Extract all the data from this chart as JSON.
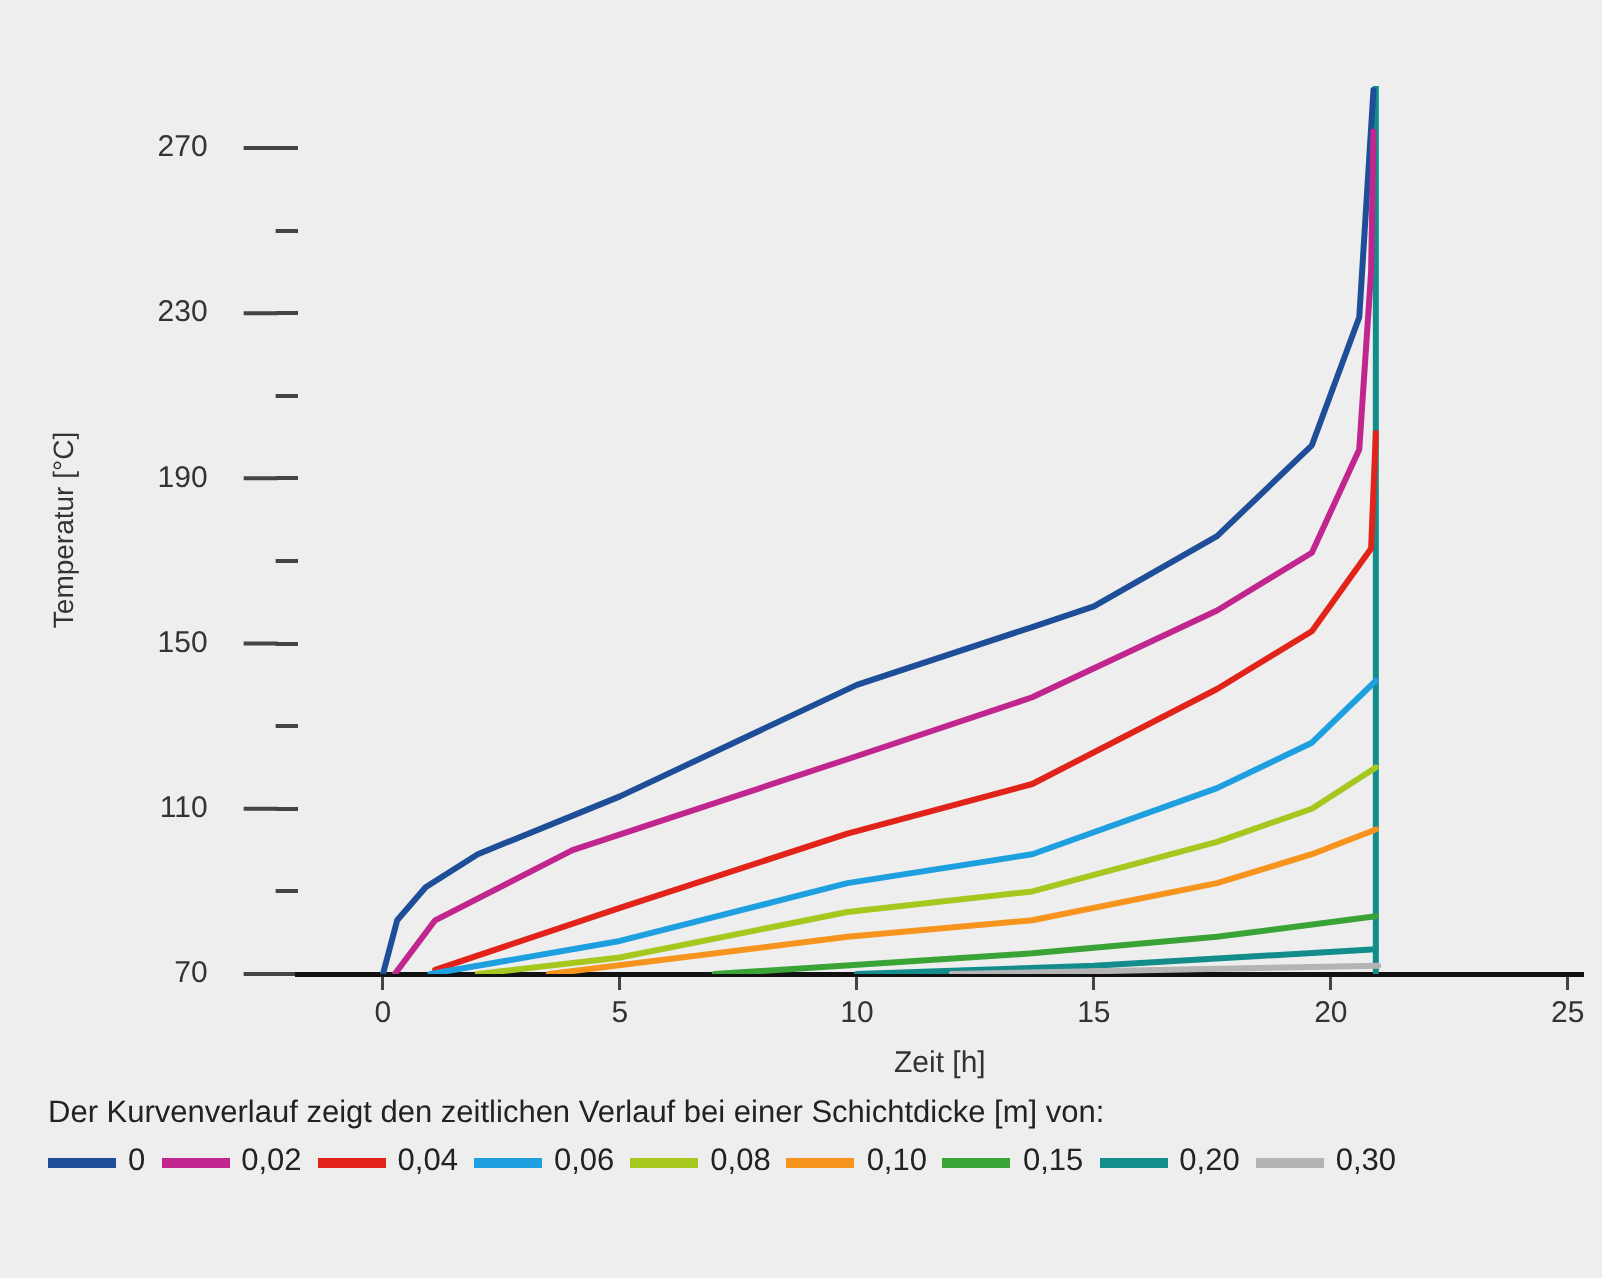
{
  "chart_data": {
    "type": "line",
    "xlabel": "Zeit [h]",
    "ylabel": "Temperatur [°C]",
    "legend_title": "Der Kurvenverlauf zeigt den zeitlichen Verlauf bei einer Schichtdicke [m] von:",
    "legend": "bottom",
    "marker": "none",
    "xlim": [
      -1.8,
      25.3
    ],
    "xticks": [
      0,
      5,
      10,
      15,
      20,
      25
    ],
    "ylim": [
      70,
      285
    ],
    "ref_lines": [
      {
        "axis": "x",
        "value": 20.95,
        "color": "#138c8c"
      }
    ],
    "yticks": [
      70,
      {
        "value": 90,
        "label": null
      },
      110,
      {
        "value": 130,
        "label": null
      },
      150,
      {
        "value": 170,
        "label": null
      },
      190,
      {
        "value": 210,
        "label": null
      },
      230,
      {
        "value": 250,
        "label": null
      },
      270
    ],
    "series": [
      {
        "name": "0",
        "color": "#1f4e99",
        "x": [
          0,
          0.3,
          0.9,
          2,
          5,
          10,
          13.7,
          15,
          17.6,
          19.6,
          20.6,
          20.9
        ],
        "values": [
          70,
          83,
          91,
          99,
          113,
          140,
          154,
          159,
          176,
          198,
          229,
          284
        ]
      },
      {
        "name": "0,02",
        "color": "#c0268e",
        "x": [
          0.25,
          1.1,
          4,
          9.8,
          13.7,
          17.6,
          19.6,
          20.6,
          20.85,
          20.9
        ],
        "values": [
          70,
          83,
          100,
          122,
          137,
          158,
          172,
          197,
          240,
          274
        ]
      },
      {
        "name": "0,04",
        "color": "#e2231a",
        "x": [
          1.1,
          5,
          9.8,
          13.7,
          17.6,
          19.6,
          20.85,
          20.95
        ],
        "values": [
          71,
          86,
          104,
          116,
          139,
          153,
          173,
          201
        ]
      },
      {
        "name": "0,06",
        "color": "#1ea0e0",
        "x": [
          1,
          5,
          9.8,
          13.7,
          17.6,
          19.6,
          20.95
        ],
        "values": [
          70,
          78,
          92,
          99,
          115,
          126,
          141
        ]
      },
      {
        "name": "0,08",
        "color": "#a6c81e",
        "x": [
          2,
          5,
          9.8,
          13.7,
          17.6,
          19.6,
          20.95
        ],
        "values": [
          70,
          74,
          85,
          90,
          102,
          110,
          120
        ]
      },
      {
        "name": "0,10",
        "color": "#f7941d",
        "x": [
          3.5,
          9.8,
          13.7,
          17.6,
          19.6,
          20.95
        ],
        "values": [
          70,
          79,
          83,
          92,
          99,
          105
        ]
      },
      {
        "name": "0,15",
        "color": "#3aa335",
        "x": [
          7,
          13.7,
          17.6,
          20.95
        ],
        "values": [
          70,
          75,
          79,
          84
        ]
      },
      {
        "name": "0,20",
        "color": "#138c8c",
        "x": [
          10,
          15,
          20.95
        ],
        "values": [
          70,
          72,
          76
        ]
      },
      {
        "name": "0,30",
        "color": "#b4b4b4",
        "x": [
          12,
          21
        ],
        "values": [
          70,
          72
        ]
      }
    ]
  }
}
